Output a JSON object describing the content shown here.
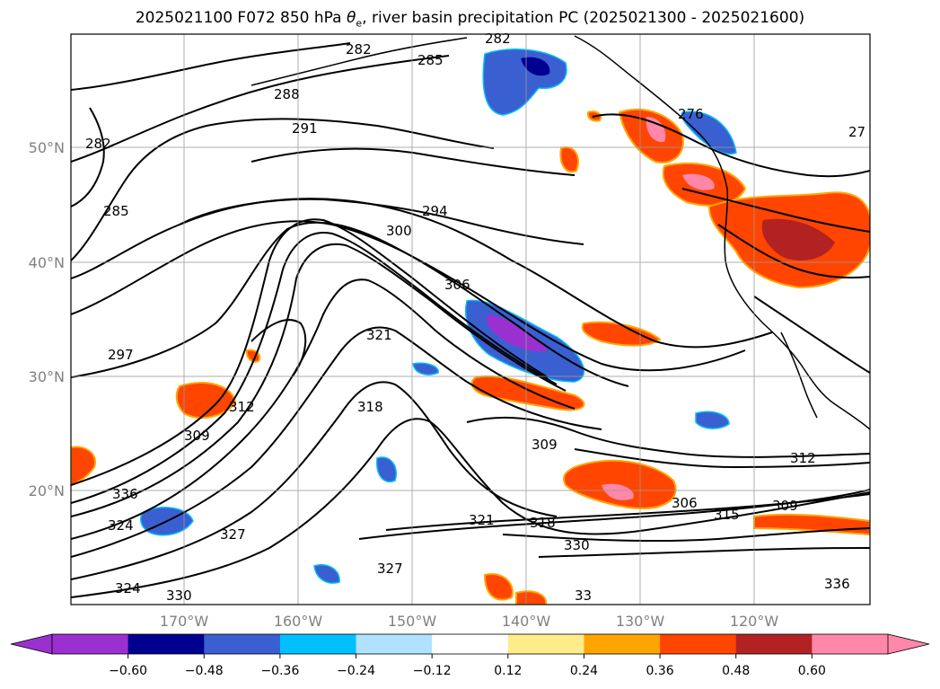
{
  "title_prefix": "2025021100 F072 850 hPa ",
  "title_symbol": "θ",
  "title_subscript": "e",
  "title_suffix": ", river basin precipitation PC (2025021300 - 2025021600)",
  "latitude_labels": [
    "50°N",
    "40°N",
    "30°N",
    "20°N"
  ],
  "longitude_labels": [
    "170°W",
    "160°W",
    "150°W",
    "140°W",
    "130°W",
    "120°W"
  ],
  "colorbar": {
    "colors": [
      "#9b30d0",
      "#000090",
      "#3a5fd0",
      "#00bfff",
      "#b0e2ff",
      "#ffffff",
      "#ffec8b",
      "#ffa500",
      "#ff4500",
      "#b22222",
      "#ff88aa"
    ],
    "tick_labels": [
      "−0.60",
      "−0.48",
      "−0.36",
      "−0.24",
      "−0.12",
      "0.12",
      "0.24",
      "0.36",
      "0.48",
      "0.60"
    ]
  },
  "contour_labels": [
    "282",
    "282",
    "285",
    "288",
    "291",
    "282",
    "285",
    "294",
    "300",
    "306",
    "297",
    "321",
    "318",
    "309",
    "312",
    "309",
    "312",
    "306",
    "315",
    "309",
    "330",
    "321",
    "318",
    "327",
    "327",
    "330",
    "336",
    "336",
    "324",
    "324",
    "276",
    "27",
    "33"
  ]
}
